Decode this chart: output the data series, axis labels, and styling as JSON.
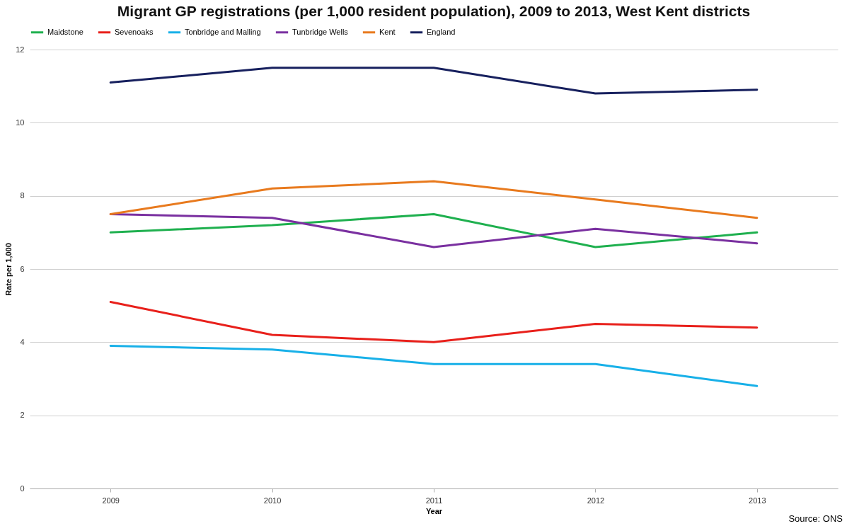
{
  "chart_data": {
    "type": "line",
    "title": "Migrant GP registrations (per 1,000 resident population), 2009 to 2013, West Kent districts",
    "xlabel": "Year",
    "ylabel": "Rate per 1,000",
    "annotations": [
      "Source: ONS"
    ],
    "categories": [
      "2009",
      "2010",
      "2011",
      "2012",
      "2013"
    ],
    "series": [
      {
        "name": "Maidstone",
        "color": "#1fb04f",
        "values": [
          7.0,
          7.2,
          7.5,
          6.6,
          7.0
        ]
      },
      {
        "name": "Sevenoaks",
        "color": "#e8201b",
        "values": [
          5.1,
          4.2,
          4.0,
          4.5,
          4.4
        ]
      },
      {
        "name": "Tonbridge and Malling",
        "color": "#18b0e8",
        "values": [
          3.9,
          3.8,
          3.4,
          3.4,
          2.8
        ]
      },
      {
        "name": "Tunbridge Wells",
        "color": "#7a30a0",
        "values": [
          7.5,
          7.4,
          6.6,
          7.1,
          6.7
        ]
      },
      {
        "name": "Kent",
        "color": "#e87a1e",
        "values": [
          7.5,
          8.2,
          8.4,
          7.9,
          7.4
        ]
      },
      {
        "name": "England",
        "color": "#17205e",
        "values": [
          11.1,
          11.5,
          11.5,
          10.8,
          10.9
        ]
      }
    ],
    "ylim": [
      0,
      12
    ],
    "yticks": [
      0,
      2,
      4,
      6,
      8,
      10,
      12
    ],
    "grid": "y",
    "legend": "top",
    "marker": "none",
    "line_style": "solid"
  }
}
